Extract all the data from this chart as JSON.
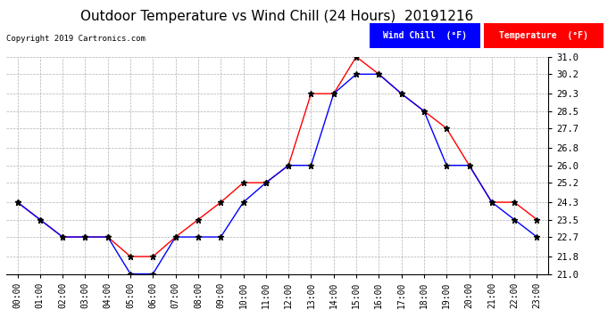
{
  "title": "Outdoor Temperature vs Wind Chill (24 Hours)  20191216",
  "copyright": "Copyright 2019 Cartronics.com",
  "hours": [
    "00:00",
    "01:00",
    "02:00",
    "03:00",
    "04:00",
    "05:00",
    "06:00",
    "07:00",
    "08:00",
    "09:00",
    "10:00",
    "11:00",
    "12:00",
    "13:00",
    "14:00",
    "15:00",
    "16:00",
    "17:00",
    "18:00",
    "19:00",
    "20:00",
    "21:00",
    "22:00",
    "23:00"
  ],
  "temperature": [
    24.3,
    23.5,
    22.7,
    22.7,
    22.7,
    21.8,
    21.8,
    22.7,
    23.5,
    24.3,
    25.2,
    25.2,
    26.0,
    29.3,
    29.3,
    31.0,
    30.2,
    29.3,
    28.5,
    27.7,
    26.0,
    24.3,
    24.3,
    23.5
  ],
  "wind_chill": [
    24.3,
    23.5,
    22.7,
    22.7,
    22.7,
    21.0,
    21.0,
    22.7,
    22.7,
    22.7,
    24.3,
    25.2,
    26.0,
    26.0,
    29.3,
    30.2,
    30.2,
    29.3,
    28.5,
    26.0,
    26.0,
    24.3,
    23.5,
    22.7
  ],
  "ylim": [
    21.0,
    31.0
  ],
  "yticks": [
    21.0,
    21.8,
    22.7,
    23.5,
    24.3,
    25.2,
    26.0,
    26.8,
    27.7,
    28.5,
    29.3,
    30.2,
    31.0
  ],
  "temp_color": "#ff0000",
  "wind_chill_color": "#0000ff",
  "marker_color": "#000000",
  "background_color": "#ffffff",
  "grid_color": "#b0b0b0",
  "title_fontsize": 11,
  "legend_wind_chill_bg": "#0000ff",
  "legend_temp_bg": "#ff0000",
  "legend_text_color": "#ffffff"
}
